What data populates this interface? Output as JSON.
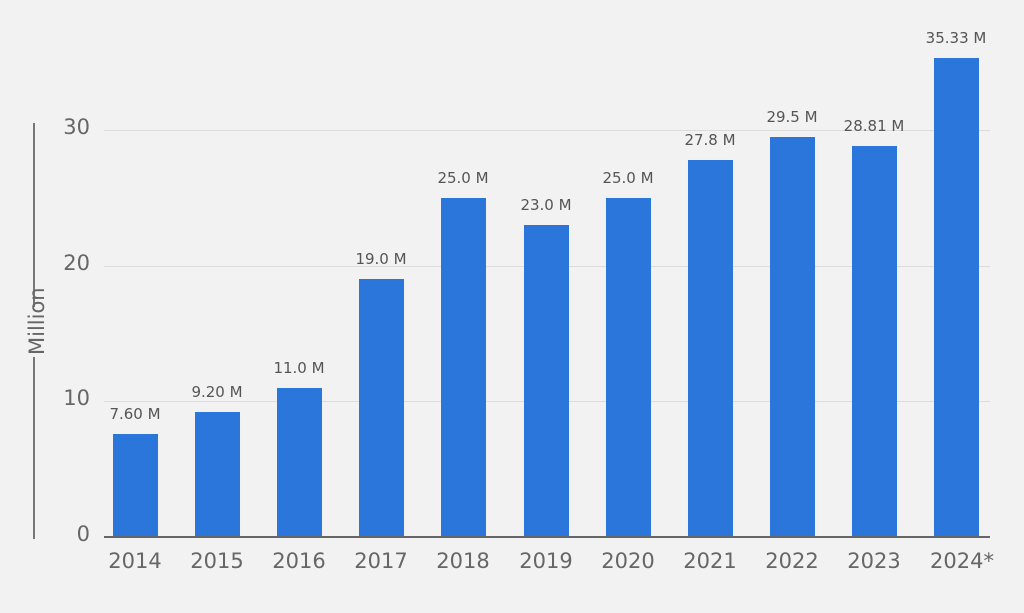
{
  "chart_data": {
    "type": "bar",
    "title": "",
    "xlabel": "",
    "ylabel": "Million",
    "ylim": [
      0,
      33
    ],
    "yticks": [
      0,
      10,
      20,
      30
    ],
    "grid": true,
    "categories": [
      "2014",
      "2015",
      "2016",
      "2017",
      "2018",
      "2019",
      "2020",
      "2021",
      "2022",
      "2023",
      "2024*"
    ],
    "values": [
      7.6,
      9.2,
      11.0,
      19.0,
      25.0,
      23.0,
      25.0,
      27.8,
      29.5,
      28.81,
      35.33
    ],
    "data_labels": [
      "7.60 M",
      "9.20 M",
      "11.0 M",
      "19.0 M",
      "25.0 M",
      "23.0 M",
      "25.0 M",
      "27.8 M",
      "29.5 M",
      "28.81 M",
      "35.33 M"
    ],
    "bar_color": "#2a76db"
  },
  "axis": {
    "y_label": "Million",
    "y_ticks": [
      "0",
      "10",
      "20",
      "30"
    ]
  }
}
